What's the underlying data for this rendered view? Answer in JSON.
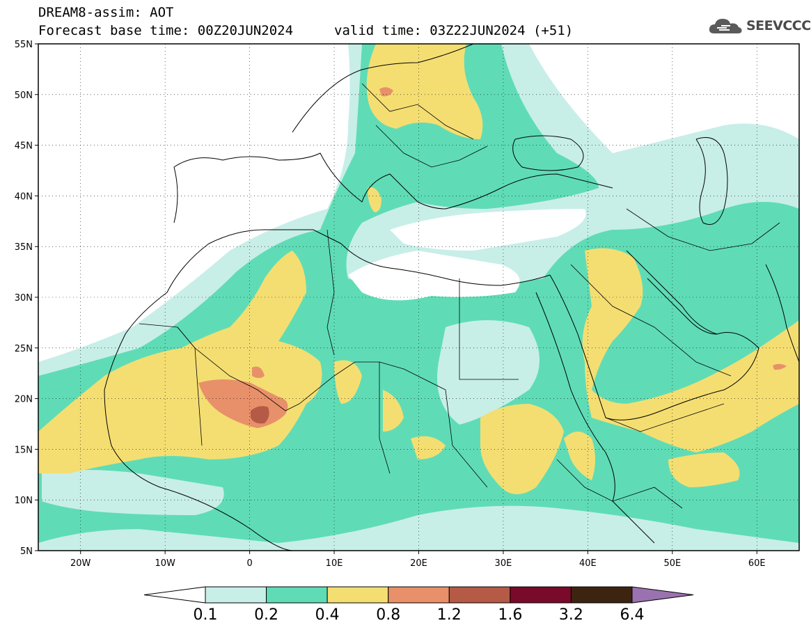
{
  "header": {
    "title": "DREAM8-assim: AOT",
    "base_time_label": "Forecast base time: 00Z20JUN2024",
    "valid_time_label": "valid time: 03Z22JUN2024 (+51)",
    "logo_text": "SEEVCCC",
    "logo_icon": "cloud-icon"
  },
  "map": {
    "lat_labels": [
      "55N",
      "50N",
      "45N",
      "40N",
      "35N",
      "30N",
      "25N",
      "20N",
      "15N",
      "10N",
      "5N"
    ],
    "lon_labels": [
      "20W",
      "10W",
      "0",
      "10E",
      "20E",
      "30E",
      "40E",
      "50E",
      "60E"
    ],
    "lat_range": [
      5,
      55
    ],
    "lon_range": [
      -25,
      65
    ],
    "grid": true
  },
  "colorbar": {
    "ticks": [
      "0.1",
      "0.2",
      "0.4",
      "0.8",
      "1.2",
      "1.6",
      "3.2",
      "6.4"
    ],
    "colors": [
      "#ffffff",
      "#c8eee8",
      "#5fdcb6",
      "#f4de72",
      "#e8906a",
      "#b45a46",
      "#7a0a2a",
      "#3d2410",
      "#9b72b0"
    ],
    "extend": "both"
  },
  "colors": {
    "c01": "#c8eee8",
    "c02": "#5fdcb6",
    "c04": "#f4de72",
    "c08": "#e8906a",
    "c12": "#b45a46",
    "c16": "#7a0a2a",
    "c32": "#3d2410",
    "c64": "#9b72b0"
  }
}
